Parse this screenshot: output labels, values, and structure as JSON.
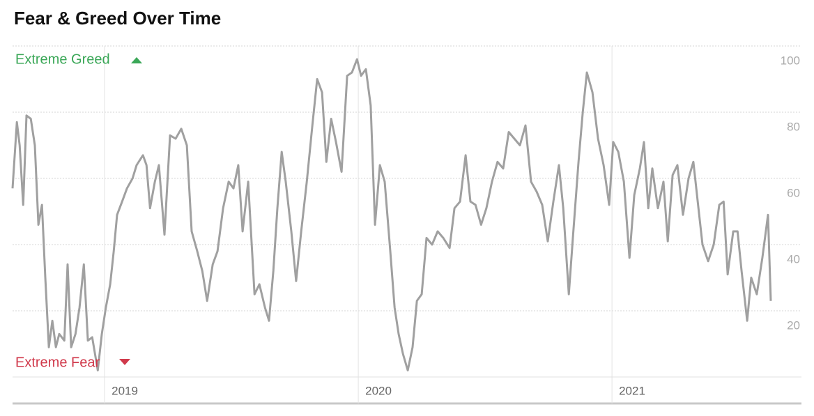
{
  "chart_data": {
    "type": "line",
    "title": "Fear & Greed Over Time",
    "annotations": [
      "Extreme Greed",
      "Extreme Fear"
    ],
    "xlim": [
      2018.637,
      2021.747
    ],
    "xticks": [
      2019,
      2020,
      2021
    ],
    "ylim": [
      0,
      100
    ],
    "yticks": [
      20,
      40,
      60,
      80,
      100
    ],
    "grid": true,
    "series": [
      {
        "color": "#a0a0a0",
        "x": [
          2018.637,
          2018.654,
          2018.665,
          2018.679,
          2018.692,
          2018.709,
          2018.725,
          2018.739,
          2018.753,
          2018.766,
          2018.78,
          2018.794,
          2018.808,
          2018.821,
          2018.841,
          2018.854,
          2018.868,
          2018.885,
          2018.901,
          2018.918,
          2018.934,
          2018.951,
          2018.973,
          2018.989,
          2019.005,
          2019.022,
          2019.036,
          2019.049,
          2019.069,
          2019.088,
          2019.11,
          2019.126,
          2019.151,
          2019.165,
          2019.179,
          2019.198,
          2019.214,
          2019.236,
          2019.258,
          2019.28,
          2019.302,
          2019.324,
          2019.343,
          2019.365,
          2019.385,
          2019.404,
          2019.426,
          2019.445,
          2019.467,
          2019.489,
          2019.508,
          2019.527,
          2019.544,
          2019.566,
          2019.591,
          2019.61,
          2019.632,
          2019.648,
          2019.665,
          2019.681,
          2019.698,
          2019.714,
          2019.736,
          2019.755,
          2019.775,
          2019.797,
          2019.819,
          2019.838,
          2019.857,
          2019.874,
          2019.893,
          2019.912,
          2019.934,
          2019.956,
          2019.975,
          2019.995,
          2020.011,
          2020.03,
          2020.049,
          2020.066,
          2020.085,
          2020.104,
          2020.126,
          2020.143,
          2020.159,
          2020.176,
          2020.195,
          2020.214,
          2020.231,
          2020.25,
          2020.269,
          2020.291,
          2020.313,
          2020.335,
          2020.36,
          2020.379,
          2020.401,
          2020.423,
          2020.442,
          2020.462,
          2020.484,
          2020.505,
          2020.527,
          2020.549,
          2020.571,
          2020.593,
          2020.615,
          2020.637,
          2020.659,
          2020.681,
          2020.703,
          2020.725,
          2020.747,
          2020.769,
          2020.791,
          2020.808,
          2020.83,
          2020.846,
          2020.868,
          2020.885,
          2020.901,
          2020.923,
          2020.945,
          2020.967,
          2020.989,
          2021.005,
          2021.025,
          2021.047,
          2021.069,
          2021.088,
          2021.11,
          2021.126,
          2021.143,
          2021.159,
          2021.181,
          2021.203,
          2021.22,
          2021.239,
          2021.258,
          2021.28,
          2021.302,
          2021.321,
          2021.341,
          2021.357,
          2021.379,
          2021.401,
          2021.423,
          2021.44,
          2021.456,
          2021.478,
          2021.495,
          2021.511,
          2021.533,
          2021.549,
          2021.571,
          2021.593,
          2021.615,
          2021.626
        ],
        "values": [
          57,
          77,
          70,
          52,
          79,
          78,
          70,
          46,
          52,
          30,
          9,
          17,
          9,
          13,
          11,
          34,
          9,
          13,
          21,
          34,
          11,
          12,
          2,
          13,
          21,
          28,
          38,
          49,
          53,
          57,
          60,
          64,
          67,
          64,
          51,
          59,
          64,
          43,
          73,
          72,
          75,
          70,
          44,
          38,
          32,
          23,
          34,
          38,
          51,
          59,
          57,
          64,
          44,
          59,
          25,
          28,
          21,
          17,
          32,
          51,
          68,
          59,
          44,
          29,
          44,
          59,
          76,
          90,
          86,
          65,
          78,
          71,
          62,
          91,
          92,
          96,
          91,
          93,
          82,
          46,
          64,
          59,
          38,
          21,
          13,
          7,
          2,
          9,
          23,
          25,
          42,
          40,
          44,
          42,
          39,
          51,
          53,
          67,
          53,
          52,
          46,
          51,
          59,
          65,
          63,
          74,
          72,
          70,
          76,
          59,
          56,
          52,
          41,
          53,
          64,
          51,
          25,
          42,
          65,
          80,
          92,
          86,
          72,
          64,
          52,
          71,
          68,
          59,
          36,
          55,
          63,
          71,
          51,
          63,
          51,
          59,
          41,
          61,
          64,
          49,
          60,
          65,
          51,
          40,
          35,
          40,
          52,
          53,
          31,
          44,
          44,
          32,
          17,
          30,
          25,
          36,
          49,
          23
        ]
      }
    ]
  }
}
